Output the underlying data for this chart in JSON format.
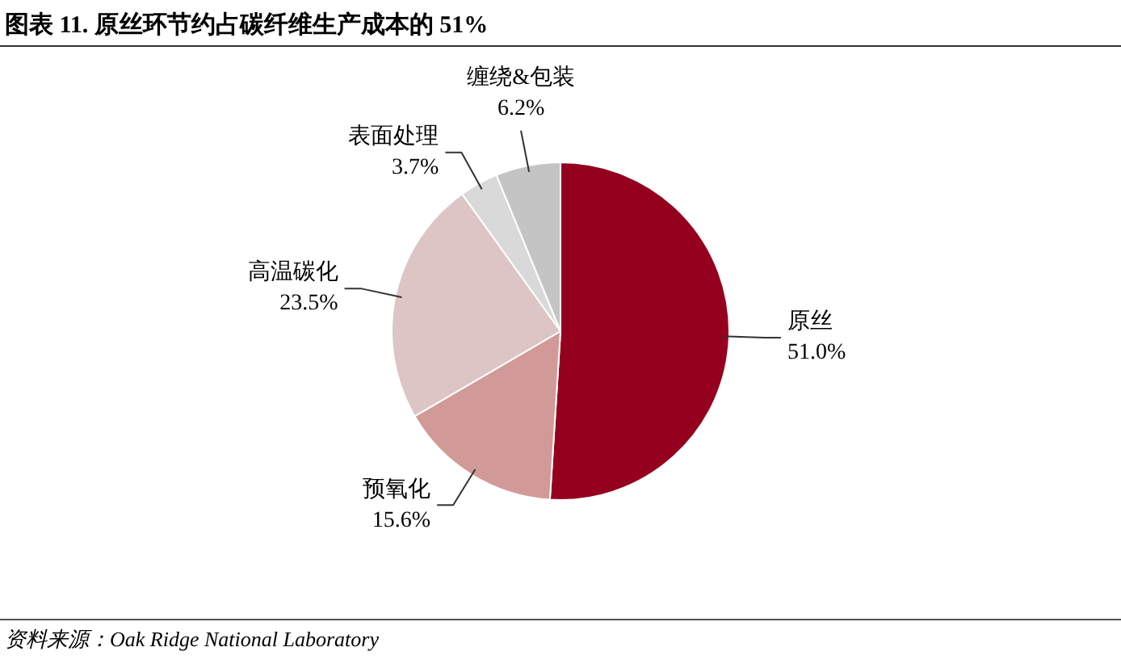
{
  "chart_data": {
    "type": "pie",
    "title": "图表 11. 原丝环节约占碳纤维生产成本的 51%",
    "categories": [
      "原丝",
      "预氧化",
      "高温碳化",
      "表面处理",
      "缠绕&包装"
    ],
    "values": [
      51.0,
      15.6,
      23.5,
      3.7,
      6.2
    ],
    "value_labels": [
      "51.0%",
      "15.6%",
      "23.5%",
      "3.7%",
      "6.2%"
    ],
    "colors": [
      "#95001f",
      "#d19a98",
      "#ddc5c5",
      "#d9d9d9",
      "#c4c4c4"
    ],
    "legend": false,
    "annotations": [
      "资料来源：Oak Ridge National Laboratory"
    ]
  }
}
